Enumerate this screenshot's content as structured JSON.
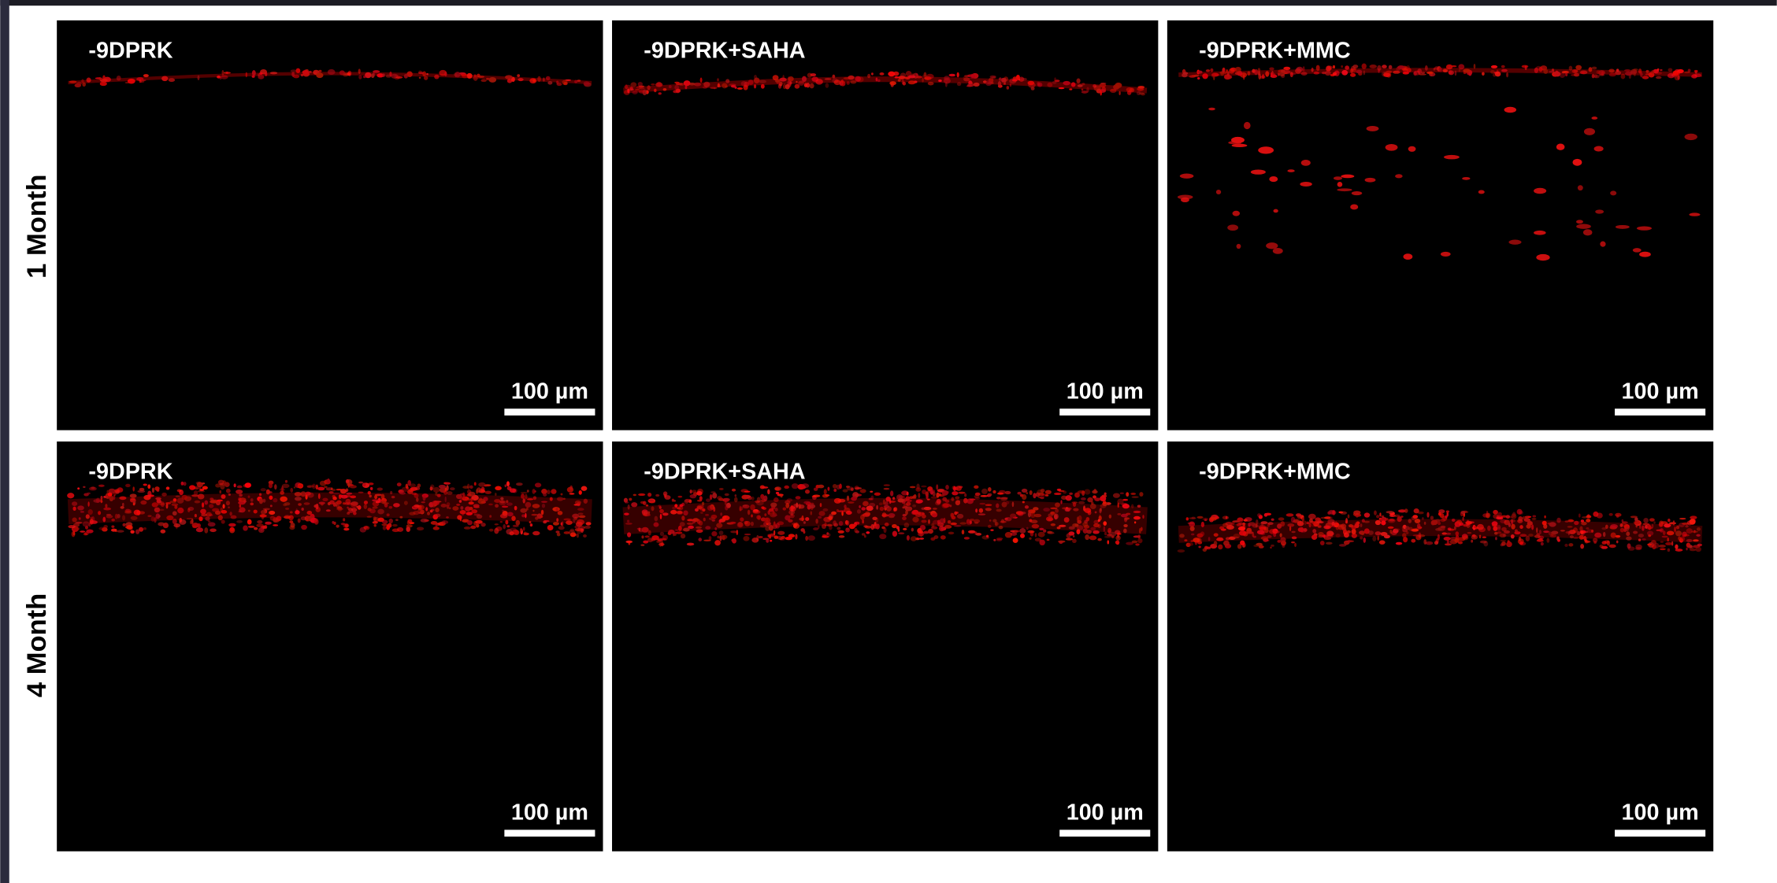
{
  "rows": [
    {
      "label": "1 Month",
      "panels": [
        {
          "label": "-9DPRK",
          "scale_bar": "100 µm"
        },
        {
          "label": "-9DPRK+SAHA",
          "scale_bar": "100 µm"
        },
        {
          "label": "-9DPRK+MMC",
          "scale_bar": "100 µm"
        }
      ]
    },
    {
      "label": "4 Month",
      "panels": [
        {
          "label": "-9DPRK",
          "scale_bar": "100 µm"
        },
        {
          "label": "-9DPRK+SAHA",
          "scale_bar": "100 µm"
        },
        {
          "label": "-9DPRK+MMC",
          "scale_bar": "100 µm"
        }
      ]
    }
  ]
}
